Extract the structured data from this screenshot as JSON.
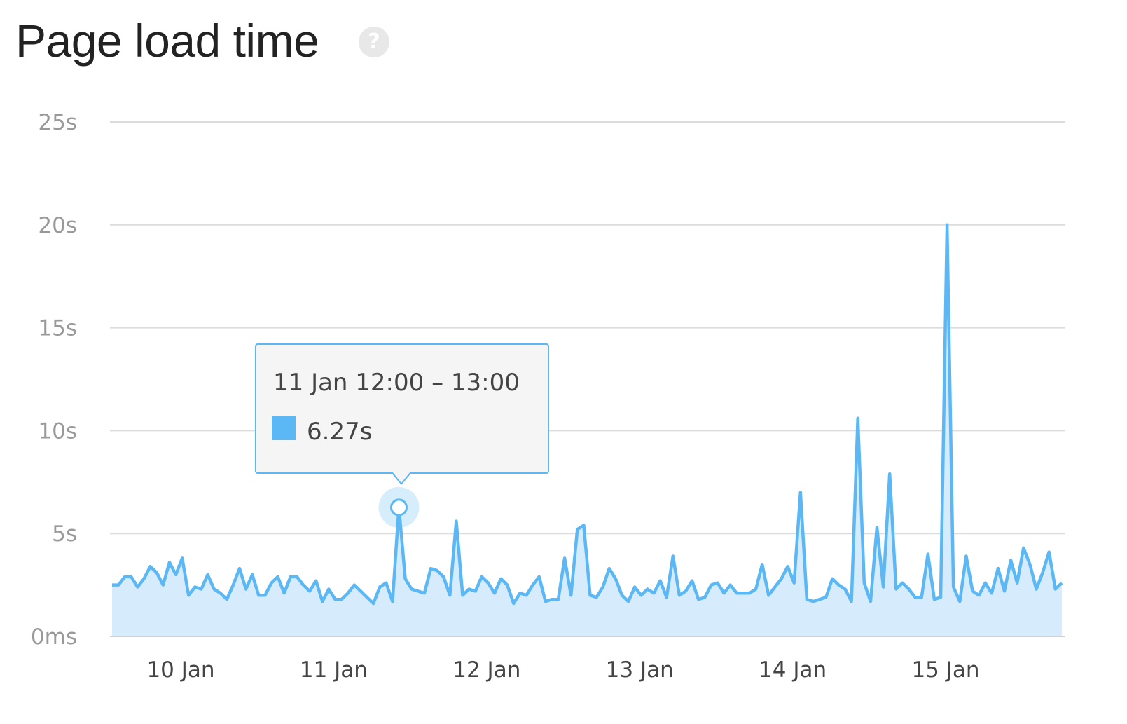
{
  "header": {
    "title": "Page load time",
    "help_icon_glyph": "?"
  },
  "chart_data": {
    "type": "area",
    "title": "Page load time",
    "xlabel": "",
    "ylabel": "",
    "y_unit": "s",
    "ylim": [
      0,
      25
    ],
    "grid": true,
    "y_ticks": [
      {
        "value": 0,
        "label": "0ms"
      },
      {
        "value": 5,
        "label": "5s"
      },
      {
        "value": 10,
        "label": "10s"
      },
      {
        "value": 15,
        "label": "15s"
      },
      {
        "value": 20,
        "label": "20s"
      },
      {
        "value": 25,
        "label": "25s"
      }
    ],
    "x_ticks": [
      {
        "value": "2024-01-10 00:00",
        "label": "10 Jan"
      },
      {
        "value": "2024-01-11 00:00",
        "label": "11 Jan"
      },
      {
        "value": "2024-01-12 00:00",
        "label": "12 Jan"
      },
      {
        "value": "2024-01-13 00:00",
        "label": "13 Jan"
      },
      {
        "value": "2024-01-14 00:00",
        "label": "14 Jan"
      },
      {
        "value": "2024-01-15 00:00",
        "label": "15 Jan"
      }
    ],
    "x_start": "2024-01-09 14:00",
    "x_step": "1h",
    "series": [
      {
        "color": "#5bb8f5",
        "fill": "#d6ebfb",
        "values": [
          2.5,
          2.5,
          2.9,
          2.9,
          2.4,
          2.8,
          3.4,
          3.1,
          2.5,
          3.6,
          3.0,
          3.8,
          2.0,
          2.4,
          2.3,
          3.0,
          2.3,
          2.1,
          1.8,
          2.5,
          3.3,
          2.3,
          3.0,
          2.0,
          2.0,
          2.6,
          2.9,
          2.1,
          2.9,
          2.9,
          2.5,
          2.2,
          2.7,
          1.7,
          2.3,
          1.8,
          1.8,
          2.1,
          2.5,
          2.2,
          1.9,
          1.6,
          2.4,
          2.6,
          1.7,
          6.27,
          2.8,
          2.3,
          2.2,
          2.1,
          3.3,
          3.2,
          2.9,
          2.0,
          5.6,
          2.0,
          2.3,
          2.2,
          2.9,
          2.6,
          2.1,
          2.8,
          2.5,
          1.6,
          2.1,
          2.0,
          2.5,
          2.9,
          1.7,
          1.8,
          1.8,
          3.8,
          2.0,
          5.2,
          5.4,
          2.0,
          1.9,
          2.4,
          3.3,
          2.8,
          2.0,
          1.7,
          2.4,
          2.0,
          2.3,
          2.1,
          2.7,
          1.9,
          3.9,
          2.0,
          2.2,
          2.7,
          1.8,
          1.9,
          2.5,
          2.6,
          2.1,
          2.5,
          2.1,
          2.1,
          2.1,
          2.3,
          3.5,
          2.0,
          2.4,
          2.8,
          3.4,
          2.6,
          7.0,
          1.8,
          1.7,
          1.8,
          1.9,
          2.8,
          2.5,
          2.3,
          1.7,
          10.6,
          2.6,
          1.7,
          5.3,
          2.4,
          7.9,
          2.3,
          2.6,
          2.3,
          1.9,
          1.9,
          4.0,
          1.8,
          1.9,
          20.0,
          2.4,
          1.7,
          3.9,
          2.2,
          2.0,
          2.6,
          2.1,
          3.3,
          2.2,
          3.7,
          2.6,
          4.3,
          3.5,
          2.3,
          3.1,
          4.1,
          2.3,
          2.6
        ]
      }
    ],
    "tooltip": {
      "index": 45,
      "title": "11 Jan 12:00 – 13:00",
      "value_label": "6.27s",
      "value": 6.27
    }
  }
}
